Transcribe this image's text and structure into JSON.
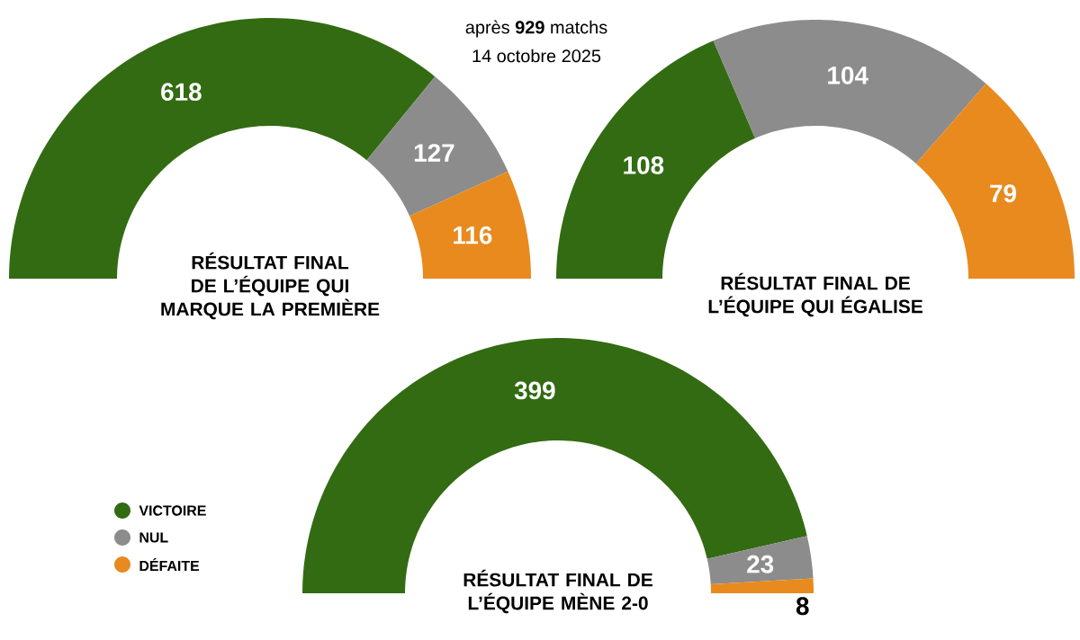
{
  "chart_data": [
    {
      "type": "donut",
      "title": "RÉSULTAT FINAL DE L’ÉQUIPE QUI MARQUE LA PREMIÈRE",
      "categories": [
        null,
        null,
        null
      ],
      "values": [
        618,
        127,
        116
      ],
      "colors": [
        "#336b12",
        "#8c8c8c",
        "#e88a1e"
      ],
      "data_labels": true,
      "annotations": [
        "après **929** matchs",
        "14 octobre 2025"
      ]
    },
    {
      "type": "donut",
      "title": "RÉSULTAT FINAL DE L’ÉQUIPE QUI ÉGALISE",
      "categories": [
        null,
        null,
        null
      ],
      "values": [
        108,
        104,
        79
      ],
      "colors": [
        "#336b12",
        "#8c8c8c",
        "#e88a1e"
      ],
      "data_labels": true
    },
    {
      "type": "donut",
      "title": "RÉSULTAT FINAL DE L’ÉQUIPE MÈNE 2-0",
      "categories": [
        "VICTOIRE",
        "NUL",
        "DÉFAITE"
      ],
      "values": [
        399,
        23,
        8
      ],
      "colors": [
        "#336b12",
        "#8c8c8c",
        "#e88a1e"
      ],
      "data_labels": true,
      "legend": "bottom left"
    }
  ]
}
